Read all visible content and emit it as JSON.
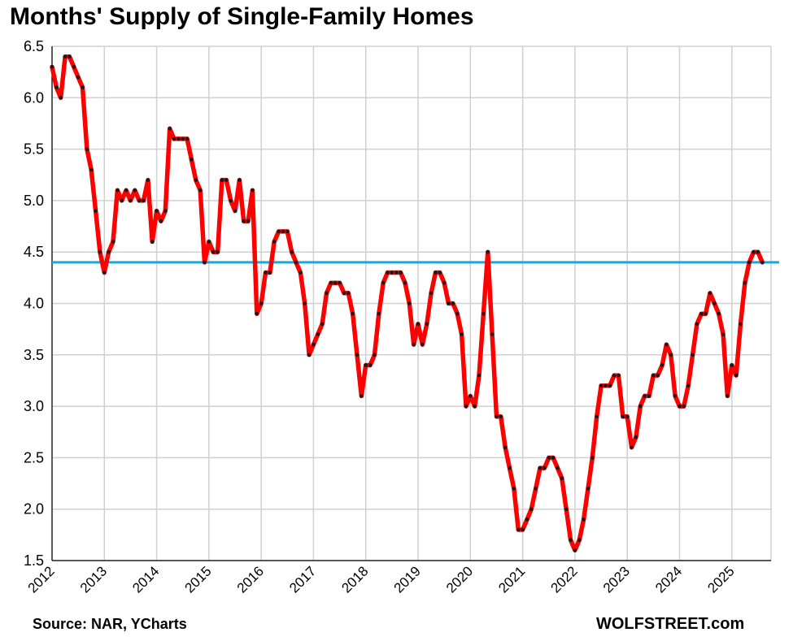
{
  "chart_data": {
    "type": "line",
    "title": "Months' Supply of Single-Family Homes",
    "source": "Source: NAR, YCharts",
    "brand": "WOLFSTREET.com",
    "xlabel": "",
    "ylabel": "",
    "ylim": [
      1.5,
      6.5
    ],
    "y_ticks": [
      "6.5",
      "6.0",
      "5.5",
      "5.0",
      "4.5",
      "4.0",
      "3.5",
      "3.0",
      "2.5",
      "2.0",
      "1.5"
    ],
    "x_ticks": [
      "2012",
      "2013",
      "2014",
      "2015",
      "2016",
      "2017",
      "2018",
      "2019",
      "2020",
      "2021",
      "2022",
      "2023",
      "2024",
      "2025"
    ],
    "x_range": [
      2012,
      2025.75
    ],
    "grid": true,
    "series": [
      {
        "color": "#ff0000",
        "marker_color": "#1a1a1a",
        "start": "2012-01",
        "frequency": "monthly",
        "values": [
          6.3,
          6.1,
          6.0,
          6.4,
          6.4,
          6.3,
          6.2,
          6.1,
          5.5,
          5.3,
          4.9,
          4.5,
          4.3,
          4.5,
          4.6,
          5.1,
          5.0,
          5.1,
          5.0,
          5.1,
          5.0,
          5.0,
          5.2,
          4.6,
          4.9,
          4.8,
          4.9,
          5.7,
          5.6,
          5.6,
          5.6,
          5.6,
          5.4,
          5.2,
          5.1,
          4.4,
          4.6,
          4.5,
          4.5,
          5.2,
          5.2,
          5.0,
          4.9,
          5.2,
          4.8,
          4.8,
          5.1,
          3.9,
          4.0,
          4.3,
          4.3,
          4.6,
          4.7,
          4.7,
          4.7,
          4.5,
          4.4,
          4.3,
          4.0,
          3.5,
          3.6,
          3.7,
          3.8,
          4.1,
          4.2,
          4.2,
          4.2,
          4.1,
          4.1,
          3.9,
          3.5,
          3.1,
          3.4,
          3.4,
          3.5,
          3.9,
          4.2,
          4.3,
          4.3,
          4.3,
          4.3,
          4.2,
          4.0,
          3.6,
          3.8,
          3.6,
          3.8,
          4.1,
          4.3,
          4.3,
          4.2,
          4.0,
          4.0,
          3.9,
          3.7,
          3.0,
          3.1,
          3.0,
          3.3,
          3.9,
          4.5,
          3.7,
          2.9,
          2.9,
          2.6,
          2.4,
          2.2,
          1.8,
          1.8,
          1.9,
          2.0,
          2.2,
          2.4,
          2.4,
          2.5,
          2.5,
          2.4,
          2.3,
          2.0,
          1.7,
          1.6,
          1.7,
          1.9,
          2.2,
          2.5,
          2.9,
          3.2,
          3.2,
          3.2,
          3.3,
          3.3,
          2.9,
          2.9,
          2.6,
          2.7,
          3.0,
          3.1,
          3.1,
          3.3,
          3.3,
          3.4,
          3.6,
          3.5,
          3.1,
          3.0,
          3.0,
          3.2,
          3.5,
          3.8,
          3.9,
          3.9,
          4.1,
          4.0,
          3.9,
          3.7,
          3.1,
          3.4,
          3.3,
          3.8,
          4.2,
          4.4,
          4.5,
          4.5,
          4.4
        ]
      }
    ],
    "reference_line": {
      "value": 4.4,
      "color": "#12a9e6"
    },
    "axis_color": "#000000",
    "grid_color": "#d0d0d0"
  }
}
